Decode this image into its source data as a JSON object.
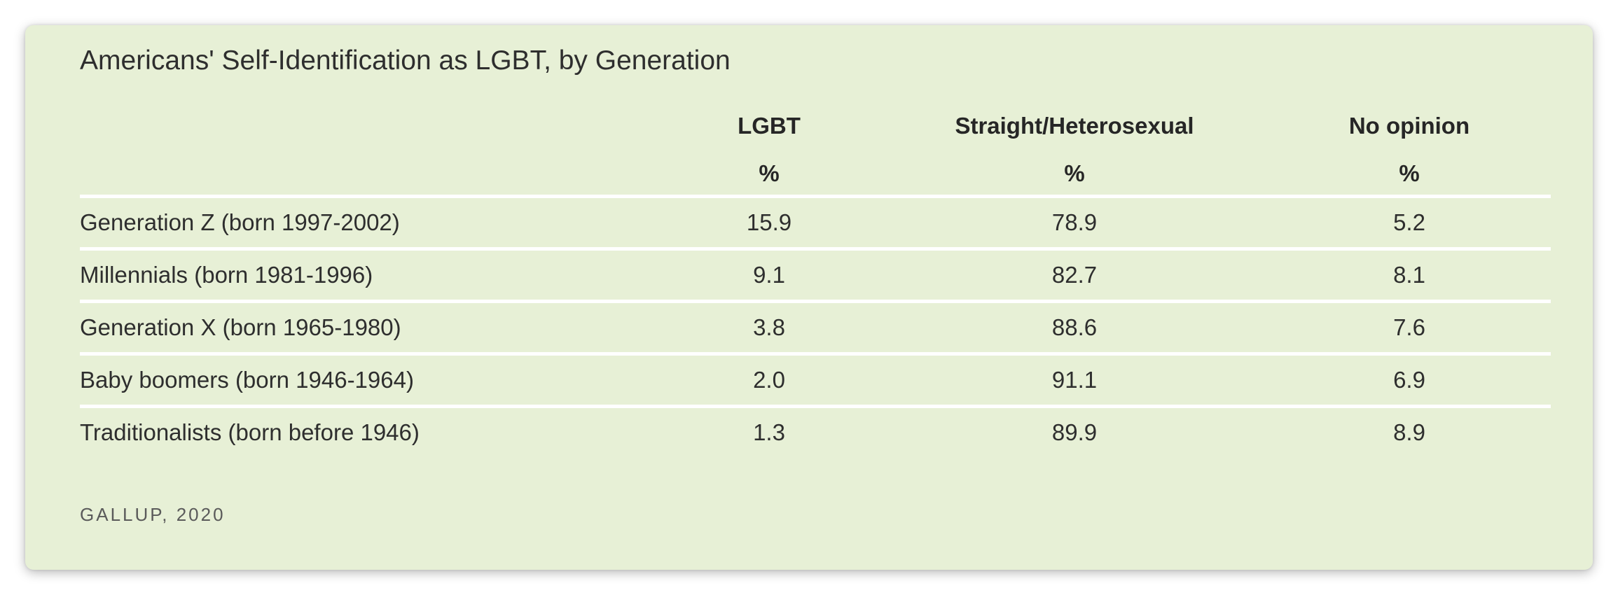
{
  "chart_data": {
    "type": "table",
    "title": "Americans' Self-Identification as LGBT, by Generation",
    "columns": [
      {
        "label": "LGBT",
        "unit": "%"
      },
      {
        "label": "Straight/Heterosexual",
        "unit": "%"
      },
      {
        "label": "No opinion",
        "unit": "%"
      }
    ],
    "rows": [
      {
        "label": "Generation Z (born 1997-2002)",
        "values": [
          "15.9",
          "78.9",
          "5.2"
        ]
      },
      {
        "label": "Millennials (born 1981-1996)",
        "values": [
          "9.1",
          "82.7",
          "8.1"
        ]
      },
      {
        "label": "Generation X (born 1965-1980)",
        "values": [
          "3.8",
          "88.6",
          "7.6"
        ]
      },
      {
        "label": "Baby boomers (born 1946-1964)",
        "values": [
          "2.0",
          "91.1",
          "6.9"
        ]
      },
      {
        "label": "Traditionalists (born before 1946)",
        "values": [
          "1.3",
          "89.9",
          "8.9"
        ]
      }
    ],
    "source": "GALLUP, 2020"
  },
  "colors": {
    "background": "#e7f0d6",
    "divider": "#ffffff",
    "text": "#2e2e2e"
  }
}
